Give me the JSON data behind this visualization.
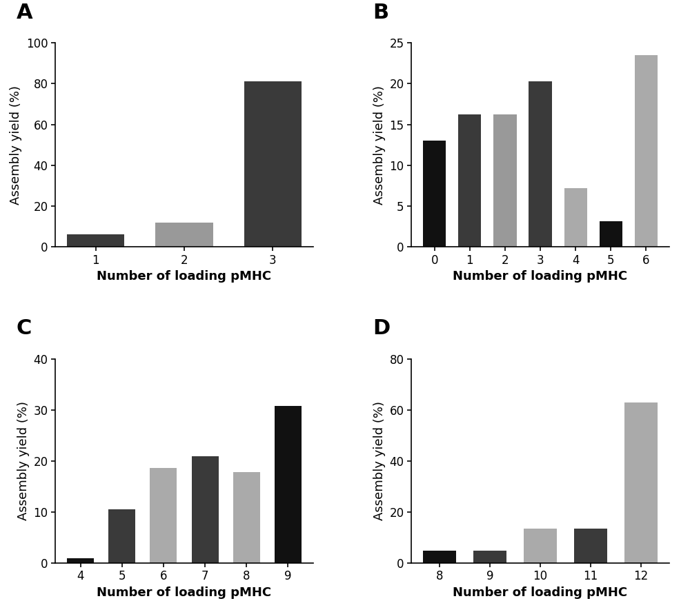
{
  "panels": [
    {
      "label": "A",
      "categories": [
        1,
        2,
        3
      ],
      "values": [
        6,
        12,
        81
      ],
      "colors": [
        "#3a3a3a",
        "#999999",
        "#3a3a3a"
      ],
      "ylim": [
        0,
        100
      ],
      "yticks": [
        0,
        20,
        40,
        60,
        80,
        100
      ],
      "ylabel": "Assembly yield (%)",
      "xlabel": "Number of loading pMHC"
    },
    {
      "label": "B",
      "categories": [
        0,
        1,
        2,
        3,
        4,
        5,
        6
      ],
      "values": [
        13,
        16.2,
        16.2,
        20.3,
        7.2,
        3.1,
        23.5
      ],
      "colors": [
        "#111111",
        "#3a3a3a",
        "#999999",
        "#3a3a3a",
        "#aaaaaa",
        "#111111",
        "#aaaaaa"
      ],
      "ylim": [
        0,
        25
      ],
      "yticks": [
        0,
        5,
        10,
        15,
        20,
        25
      ],
      "ylabel": "Assembly yield (%)",
      "xlabel": "Number of loading pMHC"
    },
    {
      "label": "C",
      "categories": [
        4,
        5,
        6,
        7,
        8,
        9
      ],
      "values": [
        0.9,
        10.5,
        18.7,
        21.0,
        17.8,
        30.8
      ],
      "colors": [
        "#111111",
        "#3a3a3a",
        "#aaaaaa",
        "#3a3a3a",
        "#aaaaaa",
        "#111111"
      ],
      "ylim": [
        0,
        40
      ],
      "yticks": [
        0,
        10,
        20,
        30,
        40
      ],
      "ylabel": "Assembly yield (%)",
      "xlabel": "Number of loading pMHC"
    },
    {
      "label": "D",
      "categories": [
        8,
        9,
        10,
        11,
        12
      ],
      "values": [
        4.8,
        4.8,
        13.5,
        13.5,
        63.0
      ],
      "colors": [
        "#111111",
        "#3a3a3a",
        "#aaaaaa",
        "#3a3a3a",
        "#aaaaaa"
      ],
      "ylim": [
        0,
        80
      ],
      "yticks": [
        0,
        20,
        40,
        60,
        80
      ],
      "ylabel": "Assembly yield (%)",
      "xlabel": "Number of loading pMHC"
    }
  ],
  "background_color": "#ffffff",
  "label_fontsize": 22,
  "axis_label_fontsize": 13,
  "tick_fontsize": 12,
  "bar_width": 0.65
}
